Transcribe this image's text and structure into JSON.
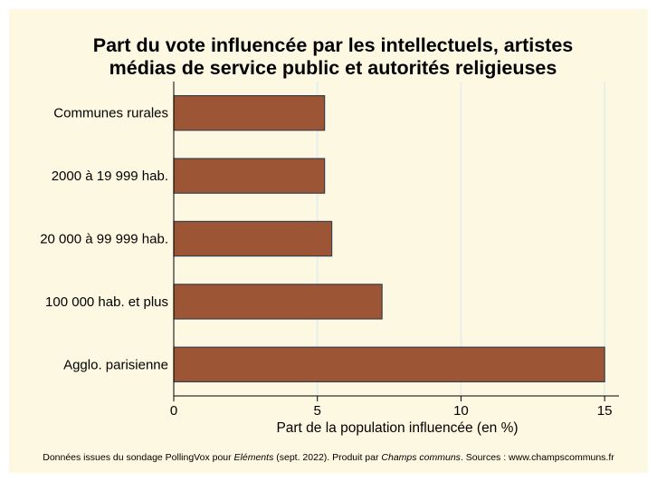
{
  "chart_data": {
    "type": "bar",
    "orientation": "horizontal",
    "title_lines": [
      "Part du vote influencée par les intellectuels, artistes",
      "médias de service public et autorités religieuses"
    ],
    "categories": [
      "Communes rurales",
      "2000 à 19 999 hab.",
      "20 000 à 99 999 hab.",
      "100 000 hab. et plus",
      "Agglo. parisienne"
    ],
    "values": [
      5.25,
      5.25,
      5.5,
      7.25,
      15.0
    ],
    "xlabel": "Part de la population influencée (en %)",
    "ylabel": "",
    "xlim": [
      0,
      15.5
    ],
    "xticks": [
      0,
      5,
      10,
      15
    ],
    "xtick_labels": [
      "0",
      "5",
      "10",
      "15"
    ],
    "grid": true,
    "colors": {
      "background": "#fdf8e1",
      "bar_fill": "#9c5535",
      "bar_stroke": "#3a3f4c",
      "grid": "#e6efe8"
    }
  },
  "footer": {
    "source_prefix": "Données issues du sondage PollingVox pour ",
    "source_magazine": "Eléments",
    "source_middle": " (sept. 2022). Produit par ",
    "source_producer": "Champs communs",
    "source_suffix": ". Sources : www.champscommuns.fr"
  }
}
